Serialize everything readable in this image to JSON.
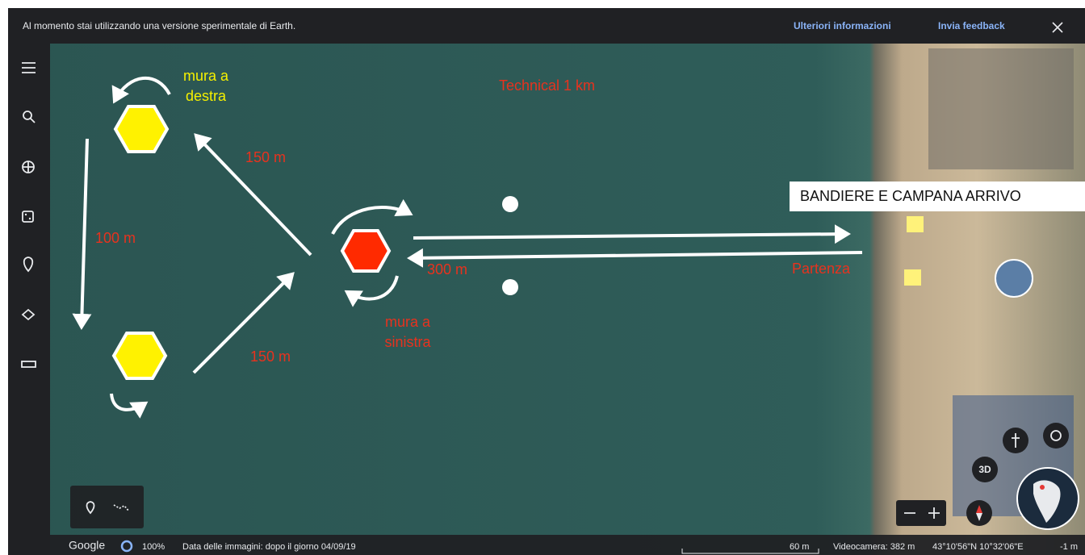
{
  "banner": {
    "message": "Al momento stai utilizzando una versione sperimentale di Earth.",
    "more_info": "Ulteriori informazioni",
    "feedback": "Invia feedback"
  },
  "annotations": {
    "wall_right": [
      "mura a",
      "destra"
    ],
    "technical": "Technical 1 km",
    "leg_upper": "150 m",
    "leg_left": "100 m",
    "leg_lower": "150 m",
    "leg_main": "300 m",
    "wall_left": [
      "mura a",
      "sinistra"
    ],
    "finish": "BANDIERE E CAMPANA ARRIVO",
    "start": "Partenza"
  },
  "controls": {
    "view_3d": "3D"
  },
  "footer": {
    "logo": "Google",
    "zoom": "100%",
    "imagery_date": "Data delle immagini: dopo il giorno 04/09/19",
    "scale": "60 m",
    "camera": "Videocamera: 382 m",
    "coordinates": "43°10'56\"N 10°32'06\"E",
    "elevation": "-1 m"
  }
}
